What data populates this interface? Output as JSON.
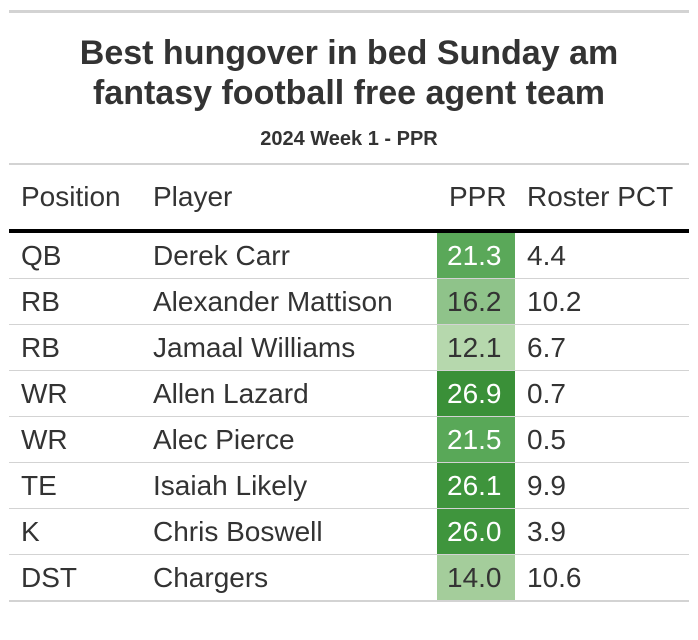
{
  "title_line1": "Best hungover in bed Sunday am",
  "title_line2": "fantasy football free agent team",
  "subtitle": "2024 Week 1 - PPR",
  "columns": {
    "position": "Position",
    "player": "Player",
    "ppr": "PPR",
    "roster_pct": "Roster PCT"
  },
  "rows": [
    {
      "position": "QB",
      "player": "Derek Carr",
      "ppr": "21.3",
      "roster_pct": "4.4",
      "ppr_color": "#5aa859",
      "ppr_text_color": "#ffffff"
    },
    {
      "position": "RB",
      "player": "Alexander Mattison",
      "ppr": "16.2",
      "roster_pct": "10.2",
      "ppr_color": "#8fc38a",
      "ppr_text_color": "#333333"
    },
    {
      "position": "RB",
      "player": "Jamaal Williams",
      "ppr": "12.1",
      "roster_pct": "6.7",
      "ppr_color": "#b6d8ad",
      "ppr_text_color": "#333333"
    },
    {
      "position": "WR",
      "player": "Allen Lazard",
      "ppr": "26.9",
      "roster_pct": "0.7",
      "ppr_color": "#3a9038",
      "ppr_text_color": "#ffffff"
    },
    {
      "position": "WR",
      "player": "Alec Pierce",
      "ppr": "21.5",
      "roster_pct": "0.5",
      "ppr_color": "#59a858",
      "ppr_text_color": "#ffffff"
    },
    {
      "position": "TE",
      "player": "Isaiah Likely",
      "ppr": "26.1",
      "roster_pct": "9.9",
      "ppr_color": "#3e943c",
      "ppr_text_color": "#ffffff"
    },
    {
      "position": "K",
      "player": "Chris Boswell",
      "ppr": "26.0",
      "roster_pct": "3.9",
      "ppr_color": "#3f953d",
      "ppr_text_color": "#ffffff"
    },
    {
      "position": "DST",
      "player": "Chargers",
      "ppr": "14.0",
      "roster_pct": "10.6",
      "ppr_color": "#a4cd9b",
      "ppr_text_color": "#333333"
    }
  ]
}
